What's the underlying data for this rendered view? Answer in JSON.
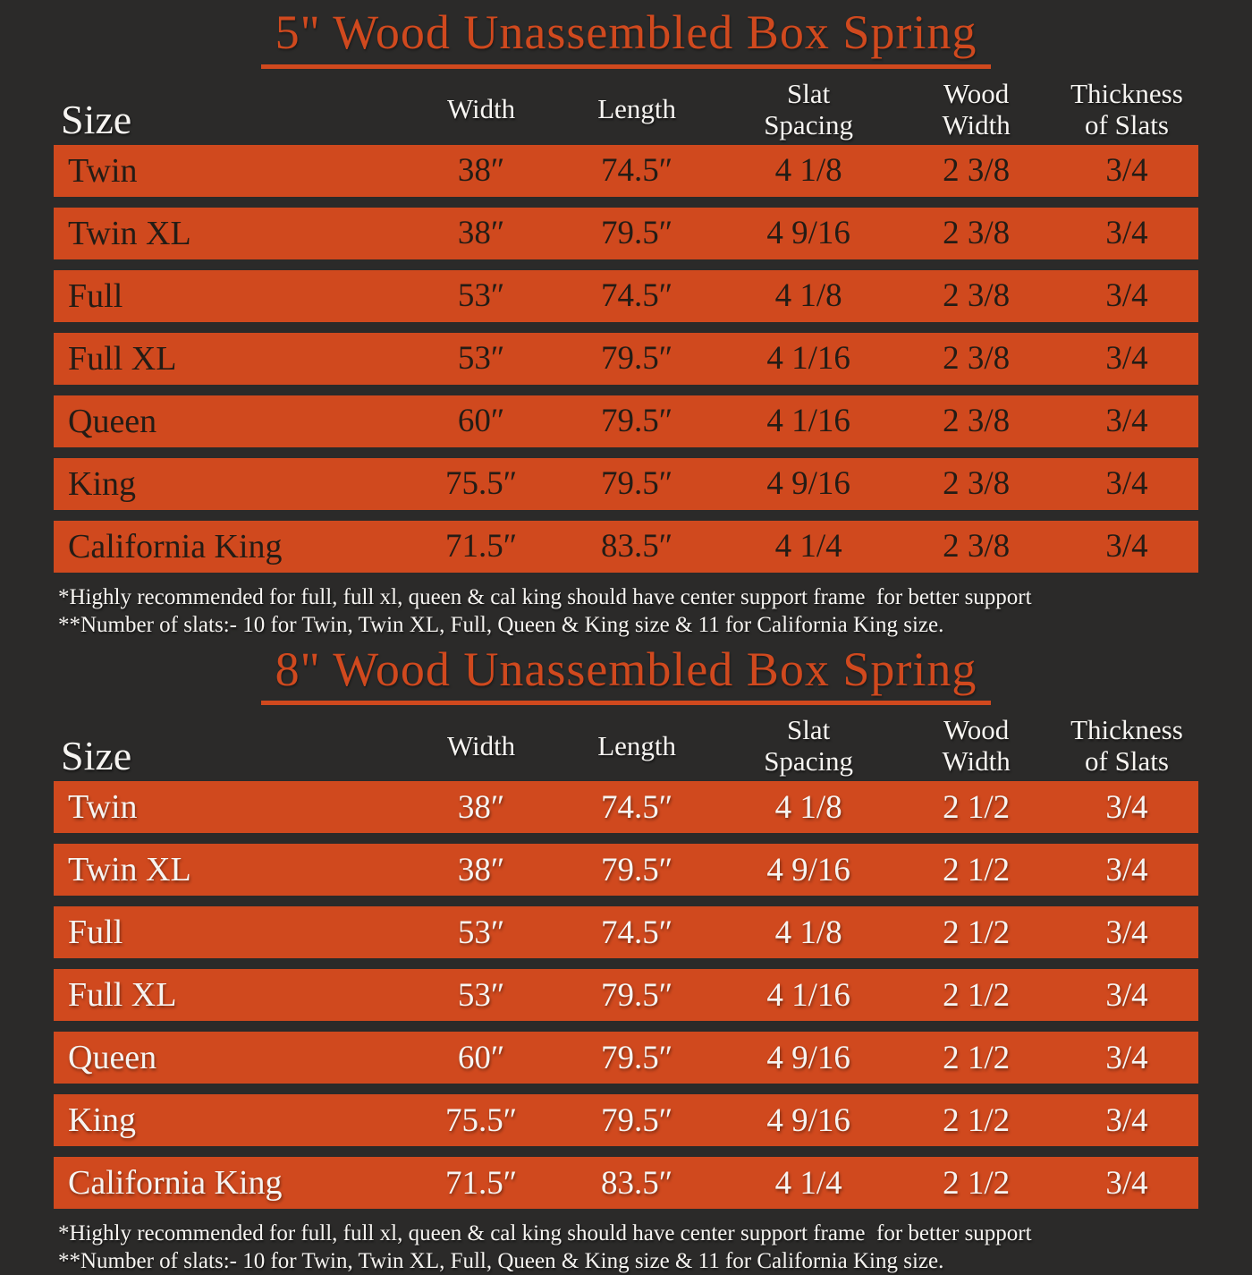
{
  "page": {
    "background_color": "#2b2a29",
    "accent_color": "#d0491e",
    "dark_row_text_color": "#241c15",
    "light_text_color": "#f6f4f1"
  },
  "chart_data": [
    {
      "type": "table",
      "title": "5\" Wood Unassembled Box Spring",
      "columns": [
        {
          "line1": "Size",
          "line2": ""
        },
        {
          "line1": "Width",
          "line2": ""
        },
        {
          "line1": "Length",
          "line2": ""
        },
        {
          "line1": "Slat",
          "line2": "Spacing"
        },
        {
          "line1": "Wood",
          "line2": "Width"
        },
        {
          "line1": "Thickness",
          "line2": "of Slats"
        }
      ],
      "rows": [
        {
          "size": "Twin",
          "width": "38″",
          "length": "74.5″",
          "slat_spacing": "4 1/8",
          "wood_width": "2 3/8",
          "thickness": "3/4"
        },
        {
          "size": "Twin XL",
          "width": "38″",
          "length": "79.5″",
          "slat_spacing": "4 9/16",
          "wood_width": "2 3/8",
          "thickness": "3/4"
        },
        {
          "size": "Full",
          "width": "53″",
          "length": "74.5″",
          "slat_spacing": "4 1/8",
          "wood_width": "2 3/8",
          "thickness": "3/4"
        },
        {
          "size": "Full XL",
          "width": "53″",
          "length": "79.5″",
          "slat_spacing": "4 1/16",
          "wood_width": "2 3/8",
          "thickness": "3/4"
        },
        {
          "size": "Queen",
          "width": "60″",
          "length": "79.5″",
          "slat_spacing": "4 1/16",
          "wood_width": "2 3/8",
          "thickness": "3/4"
        },
        {
          "size": "King",
          "width": "75.5″",
          "length": "79.5″",
          "slat_spacing": "4 9/16",
          "wood_width": "2 3/8",
          "thickness": "3/4"
        },
        {
          "size": "California King",
          "width": "71.5″",
          "length": "83.5″",
          "slat_spacing": "4 1/4",
          "wood_width": "2 3/8",
          "thickness": "3/4"
        }
      ],
      "footnotes": [
        "*Highly recommended for full, full xl, queen & cal king should have center support frame  for better support",
        "**Number of slats:- 10 for Twin, Twin XL, Full, Queen & King size & 11 for California King size."
      ]
    },
    {
      "type": "table",
      "title": "8\" Wood Unassembled Box Spring",
      "columns": [
        {
          "line1": "Size",
          "line2": ""
        },
        {
          "line1": "Width",
          "line2": ""
        },
        {
          "line1": "Length",
          "line2": ""
        },
        {
          "line1": "Slat",
          "line2": "Spacing"
        },
        {
          "line1": "Wood",
          "line2": "Width"
        },
        {
          "line1": "Thickness",
          "line2": "of Slats"
        }
      ],
      "rows": [
        {
          "size": "Twin",
          "width": "38″",
          "length": "74.5″",
          "slat_spacing": "4 1/8",
          "wood_width": "2 1/2",
          "thickness": "3/4"
        },
        {
          "size": "Twin XL",
          "width": "38″",
          "length": "79.5″",
          "slat_spacing": "4 9/16",
          "wood_width": "2 1/2",
          "thickness": "3/4"
        },
        {
          "size": "Full",
          "width": "53″",
          "length": "74.5″",
          "slat_spacing": "4 1/8",
          "wood_width": "2 1/2",
          "thickness": "3/4"
        },
        {
          "size": "Full XL",
          "width": "53″",
          "length": "79.5″",
          "slat_spacing": "4 1/16",
          "wood_width": "2 1/2",
          "thickness": "3/4"
        },
        {
          "size": "Queen",
          "width": "60″",
          "length": "79.5″",
          "slat_spacing": "4 9/16",
          "wood_width": "2 1/2",
          "thickness": "3/4"
        },
        {
          "size": "King",
          "width": "75.5″",
          "length": "79.5″",
          "slat_spacing": "4 9/16",
          "wood_width": "2 1/2",
          "thickness": "3/4"
        },
        {
          "size": "California King",
          "width": "71.5″",
          "length": "83.5″",
          "slat_spacing": "4 1/4",
          "wood_width": "2 1/2",
          "thickness": "3/4"
        }
      ],
      "footnotes": [
        "*Highly recommended for full, full xl, queen & cal king should have center support frame  for better support",
        "**Number of slats:- 10 for Twin, Twin XL, Full, Queen & King size & 11 for California King size."
      ]
    }
  ]
}
